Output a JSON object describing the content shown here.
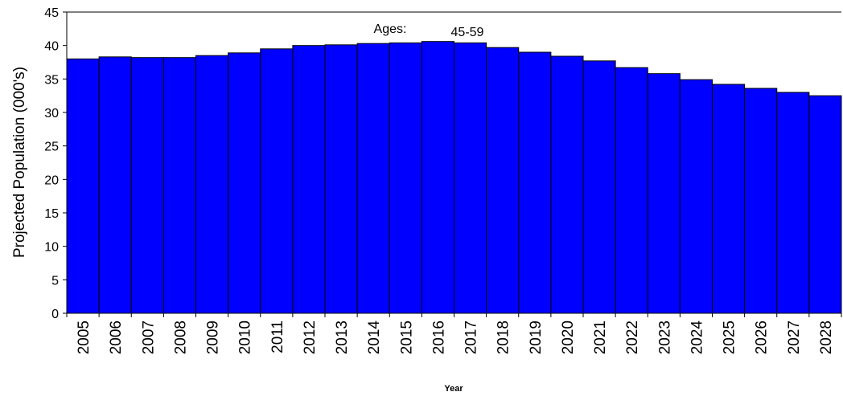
{
  "chart_data": {
    "type": "bar",
    "ylabel": "Projected Population (000's)",
    "xlabel": "Year",
    "annotations": [
      "Ages:",
      "45-59"
    ],
    "categories": [
      "2005",
      "2006",
      "2007",
      "2008",
      "2009",
      "2010",
      "2011",
      "2012",
      "2013",
      "2014",
      "2015",
      "2016",
      "2017",
      "2018",
      "2019",
      "2020",
      "2021",
      "2022",
      "2023",
      "2024",
      "2025",
      "2026",
      "2027",
      "2028"
    ],
    "values": [
      38.0,
      38.3,
      38.2,
      38.2,
      38.5,
      38.9,
      39.5,
      40.0,
      40.1,
      40.3,
      40.4,
      40.6,
      40.4,
      39.7,
      39.0,
      38.4,
      37.7,
      36.7,
      35.8,
      34.9,
      34.2,
      33.6,
      33.0,
      32.5
    ],
    "color": "#0000ff",
    "ylim": [
      0,
      45
    ],
    "yticks": [
      0,
      5,
      10,
      15,
      20,
      25,
      30,
      35,
      40,
      45
    ],
    "grid": false
  }
}
